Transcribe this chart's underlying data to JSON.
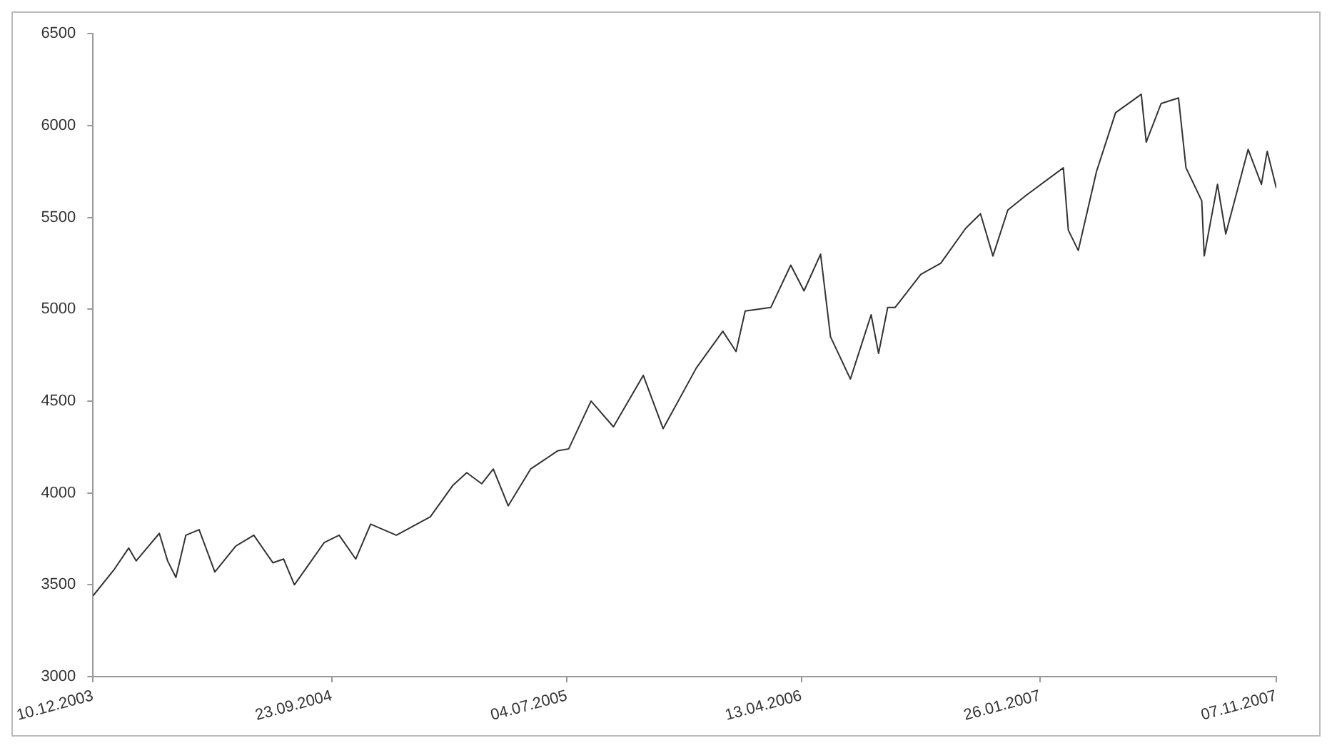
{
  "chart_data": {
    "type": "line",
    "x": [
      "2003-12-10",
      "2004-01-04",
      "2004-01-22",
      "2004-01-31",
      "2004-02-28",
      "2004-03-09",
      "2004-03-19",
      "2004-03-31",
      "2004-04-16",
      "2004-05-05",
      "2004-05-30",
      "2004-06-21",
      "2004-07-14",
      "2004-07-27",
      "2004-08-09",
      "2004-09-14",
      "2004-10-02",
      "2004-10-22",
      "2004-11-09",
      "2004-12-10",
      "2005-01-20",
      "2005-02-16",
      "2005-03-05",
      "2005-03-23",
      "2005-04-06",
      "2005-04-24",
      "2005-05-21",
      "2005-06-23",
      "2005-07-06",
      "2005-08-02",
      "2005-08-29",
      "2005-10-04",
      "2005-10-28",
      "2005-12-07",
      "2006-01-08",
      "2006-01-24",
      "2006-02-04",
      "2006-03-07",
      "2006-03-31",
      "2006-04-16",
      "2006-05-06",
      "2006-05-18",
      "2006-06-11",
      "2006-07-06",
      "2006-07-15",
      "2006-07-26",
      "2006-08-04",
      "2006-09-04",
      "2006-09-28",
      "2006-10-28",
      "2006-11-15",
      "2006-11-30",
      "2006-12-18",
      "2007-01-09",
      "2007-02-23",
      "2007-03-01",
      "2007-03-13",
      "2007-04-04",
      "2007-04-27",
      "2007-05-28",
      "2007-06-03",
      "2007-06-21",
      "2007-07-12",
      "2007-07-21",
      "2007-08-09",
      "2007-08-12",
      "2007-08-28",
      "2007-09-07",
      "2007-10-04",
      "2007-10-20",
      "2007-10-27",
      "2007-11-07"
    ],
    "series": [
      {
        "color": "#333333",
        "values": [
          3440,
          3580,
          3700,
          3630,
          3780,
          3630,
          3540,
          3770,
          3800,
          3570,
          3710,
          3770,
          3620,
          3640,
          3500,
          3730,
          3770,
          3640,
          3830,
          3770,
          3870,
          4040,
          4110,
          4050,
          4130,
          3930,
          4130,
          4230,
          4240,
          4500,
          4360,
          4640,
          4350,
          4680,
          4880,
          4770,
          4990,
          5010,
          5240,
          5100,
          5300,
          4850,
          4620,
          4970,
          4760,
          5010,
          5010,
          5190,
          5250,
          5440,
          5520,
          5290,
          5540,
          5620,
          5770,
          5430,
          5320,
          5750,
          6070,
          6170,
          5910,
          6120,
          6150,
          5770,
          5590,
          5290,
          5680,
          5410,
          5870,
          5680,
          5860,
          5660
        ]
      }
    ],
    "xlim": [
      "2003-12-10",
      "2007-11-07"
    ],
    "xticks": [
      {
        "value": "2003-12-10",
        "label": "10.12.2003"
      },
      {
        "value": "2004-09-23",
        "label": "23.09.2004"
      },
      {
        "value": "2005-07-04",
        "label": "04.07.2005"
      },
      {
        "value": "2006-04-13",
        "label": "13.04.2006"
      },
      {
        "value": "2007-01-26",
        "label": "26.01.2007"
      },
      {
        "value": "2007-11-07",
        "label": "07.11.2007"
      }
    ],
    "ylim": [
      3000,
      6500
    ],
    "yticks": [
      3000,
      3500,
      4000,
      4500,
      5000,
      5500,
      6000,
      6500
    ],
    "grid": false,
    "legend": false,
    "marker": "none",
    "line_style": "solid"
  }
}
